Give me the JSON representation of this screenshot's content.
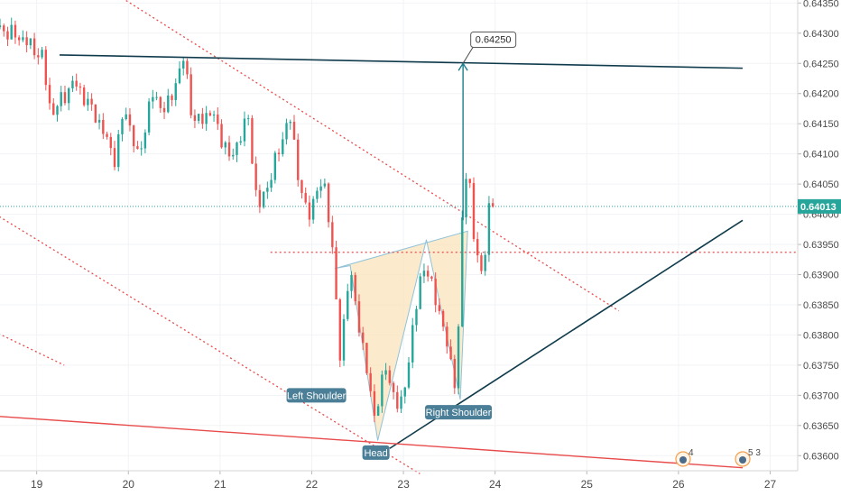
{
  "chart_data": {
    "type": "candlestick",
    "x_ticks": [
      "19",
      "20",
      "21",
      "22",
      "23",
      "24",
      "25",
      "26",
      "27"
    ],
    "y_ticks": [
      "0.64350",
      "0.64300",
      "0.64250",
      "0.64200",
      "0.64150",
      "0.64100",
      "0.64050",
      "0.64000",
      "0.63950",
      "0.63900",
      "0.63850",
      "0.63800",
      "0.63750",
      "0.63700",
      "0.63650",
      "0.63600"
    ],
    "ylim": [
      0.63575,
      0.64355
    ],
    "xlim": [
      18.6,
      27.3
    ],
    "current_price": "0.64013",
    "current_price_value": 0.64013,
    "target_price": "0.64250",
    "target_price_value": 0.6425,
    "pattern_labels": {
      "left_shoulder": "Left Shoulder",
      "head": "Head",
      "right_shoulder": "Right Shoulder"
    },
    "event_badges": [
      {
        "day": 26.05,
        "count": "4"
      },
      {
        "day": 26.7,
        "count": "5 3"
      }
    ],
    "colors": {
      "up": "#26a69a",
      "down": "#ef5350",
      "trend_dark": "#0f3b4c",
      "trend_red": "#e84b4b",
      "pattern_fill": "#fbe3bb",
      "pattern_stroke": "#8fc3d9",
      "price_line": "#26a69a"
    }
  }
}
